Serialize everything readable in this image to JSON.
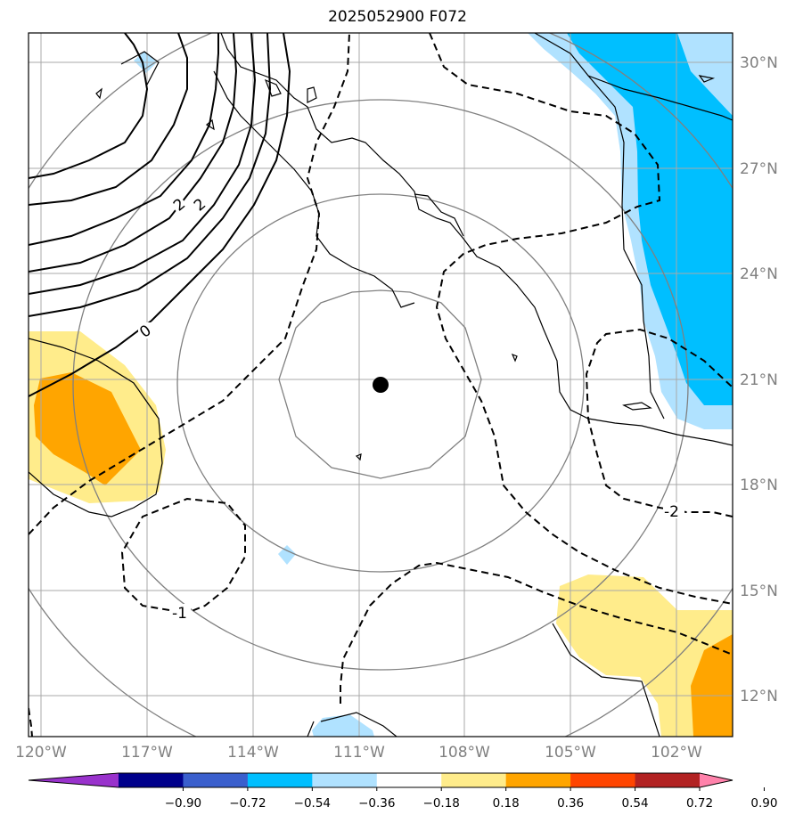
{
  "title": "2025052900 F072",
  "map": {
    "lon_labels": [
      "120°W",
      "117°W",
      "114°W",
      "111°W",
      "108°W",
      "105°W",
      "102°W"
    ],
    "lat_labels": [
      "30°N",
      "27°N",
      "24°N",
      "21°N",
      "18°N",
      "15°N",
      "12°N"
    ],
    "center_marker": {
      "lon": "110.4°W",
      "lat": "20.8°N"
    },
    "contour_labels": {
      "upper_left_a": "2",
      "upper_left_b": "2",
      "left_zero": "0",
      "lower_minus_one": "-1",
      "right_minus_two": "-2"
    }
  },
  "colorbar": {
    "ticks": [
      "−0.90",
      "−0.72",
      "−0.54",
      "−0.36",
      "−0.18",
      "0.18",
      "0.36",
      "0.54",
      "0.72",
      "0.90"
    ],
    "colors": [
      "#9932cc",
      "#00008b",
      "#3a5fcd",
      "#00bfff",
      "#b0e2ff",
      "#ffffff",
      "#ffec8b",
      "#ffa500",
      "#ff4500",
      "#b22222",
      "#ff82ab"
    ]
  },
  "colors": {
    "grid": "#a9a9a9",
    "range_rings": "#808080",
    "coast": "#000000"
  }
}
